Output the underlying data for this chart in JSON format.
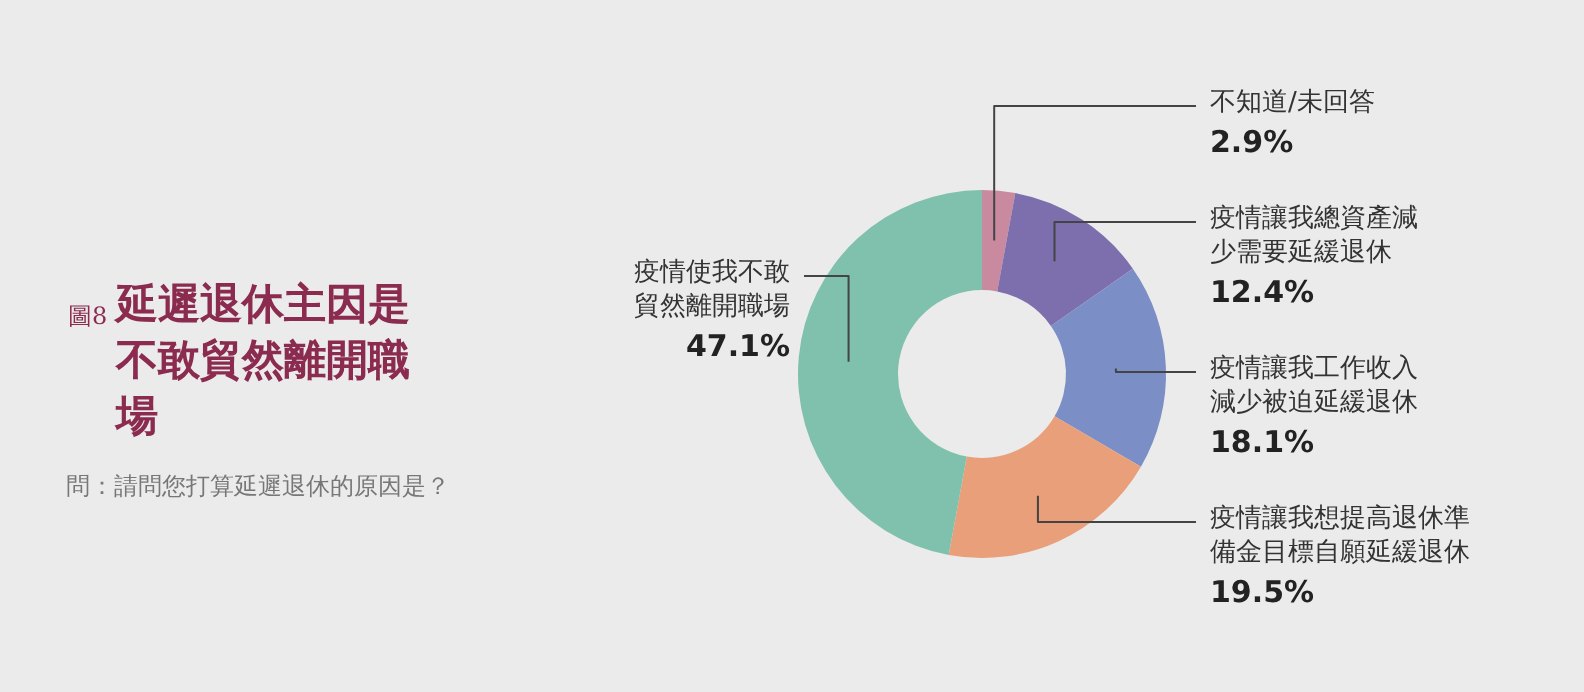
{
  "chart_data": {
    "type": "donut",
    "title": "延遲退休主因是不敢貿然離開職場",
    "subtitle": "問：請問您打算延遲退休的原因是？",
    "annotations": [
      "圖8"
    ],
    "categories": [
      "不知道/未回答",
      "疫情讓我總資產減少需要延緩退休",
      "疫情讓我工作收入減少被迫延緩退休",
      "疫情讓我想提高退休準備金目標自願延緩退休",
      "疫情使我不敢貿然離開職場"
    ],
    "values": [
      2.9,
      12.4,
      18.1,
      19.5,
      47.1
    ],
    "colors": [
      "#c98a9f",
      "#7d6fae",
      "#7b8ec6",
      "#e9a07a",
      "#7fc1ad"
    ],
    "value_labels": [
      "2.9%",
      "12.4%",
      "18.1%",
      "19.5%",
      "47.1%"
    ]
  }
}
